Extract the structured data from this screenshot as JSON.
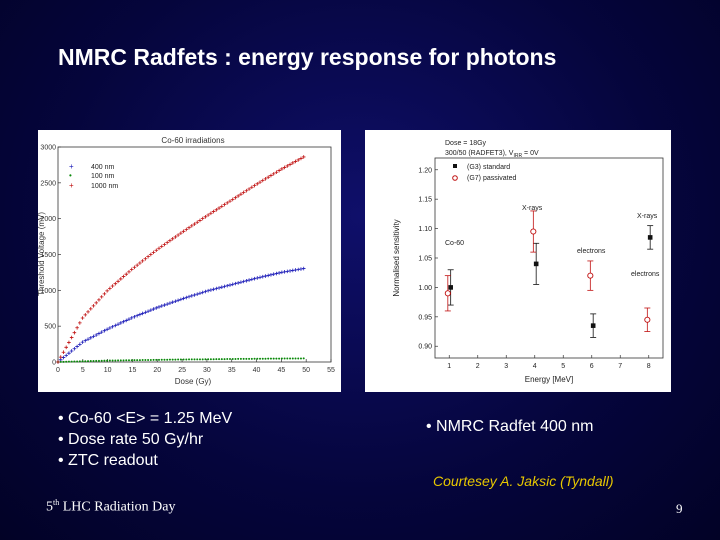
{
  "slide": {
    "title": "NMRC Radfets : energy response for photons",
    "left_bullets": [
      "Co-60 <E> = 1.25 MeV",
      "Dose rate 50 Gy/hr",
      "ZTC readout"
    ],
    "right_bullet": "NMRC Radfet 400 nm",
    "courtesy": "Courtesey A. Jaksic (Tyndall)",
    "footer_num": "5",
    "footer_sup": "th",
    "footer_text": " LHC Radiation Day",
    "page_number": "9"
  },
  "colors": {
    "background": "#05053c",
    "courtesy": "#e8c800",
    "series_400": "#1a1ab8",
    "series_100": "#0a8a0a",
    "series_1000": "#c01010"
  },
  "chart_data": [
    {
      "type": "scatter",
      "title": "Co-60 irradiations",
      "xlabel": "Dose (Gy)",
      "ylabel": "Threshold Voltage (mV)",
      "xlim": [
        0,
        55
      ],
      "ylim": [
        0,
        3000
      ],
      "xticks": [
        "0",
        "5",
        "10",
        "15",
        "20",
        "25",
        "30",
        "35",
        "40",
        "45",
        "50",
        "55"
      ],
      "yticks": [
        "0",
        "500",
        "1000",
        "1500",
        "2000",
        "2500",
        "3000"
      ],
      "legend_position": "top-left",
      "series": [
        {
          "name": "400 nm",
          "x": [
            0,
            5,
            10,
            15,
            20,
            25,
            30,
            35,
            40,
            45,
            50
          ],
          "y": [
            0,
            280,
            460,
            620,
            760,
            880,
            990,
            1080,
            1170,
            1250,
            1310
          ]
        },
        {
          "name": "100 nm",
          "x": [
            0,
            5,
            10,
            15,
            20,
            25,
            30,
            35,
            40,
            45,
            50
          ],
          "y": [
            0,
            10,
            20,
            25,
            30,
            35,
            38,
            42,
            45,
            48,
            50
          ]
        },
        {
          "name": "1000 nm",
          "x": [
            0,
            5,
            10,
            15,
            20,
            25,
            30,
            35,
            40,
            45,
            50
          ],
          "y": [
            0,
            620,
            1000,
            1300,
            1570,
            1810,
            2040,
            2260,
            2480,
            2690,
            2880
          ]
        }
      ]
    },
    {
      "type": "scatter",
      "xlabel": "Energy [MeV]",
      "ylabel": "Normalised sensitivity",
      "xlim": [
        0.5,
        8.5
      ],
      "ylim": [
        0.88,
        1.22
      ],
      "xticks": [
        "1",
        "2",
        "3",
        "4",
        "5",
        "6",
        "7",
        "8"
      ],
      "yticks": [
        "0.90",
        "0.95",
        "1.00",
        "1.05",
        "1.10",
        "1.15",
        "1.20"
      ],
      "legend_title": "Dose = 18Gy",
      "legend_subtitle": "300/50 (RADFET3), V",
      "legend_subtitle_sub": "IRR",
      "legend_subtitle_end": " = 0V",
      "legend_position": "top-right",
      "annotations": [
        "Co-60",
        "X-rays",
        "electrons",
        "X-rays",
        "electrons"
      ],
      "series": [
        {
          "name": "(G3) standard",
          "x": [
            1,
            4,
            6,
            8
          ],
          "y": [
            1.0,
            1.04,
            0.935,
            1.085
          ],
          "err": [
            0.03,
            0.035,
            0.02,
            0.02
          ]
        },
        {
          "name": "(G7) passivated",
          "x": [
            1,
            4,
            6,
            8
          ],
          "y": [
            0.99,
            1.095,
            1.02,
            0.945
          ],
          "err": [
            0.03,
            0.035,
            0.025,
            0.02
          ]
        }
      ]
    }
  ]
}
